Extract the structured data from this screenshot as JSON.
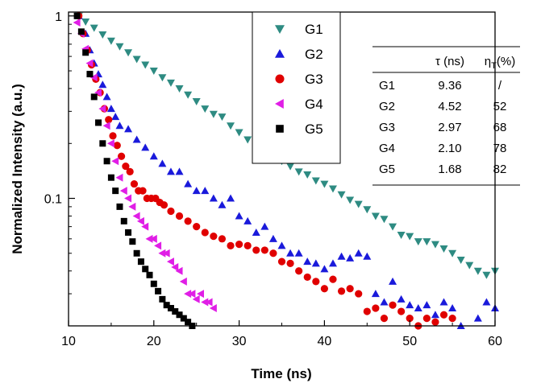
{
  "chart_data": {
    "type": "scatter",
    "xlabel": "Time (ns)",
    "ylabel": "Normalized Intensity (a.u.)",
    "xlim": [
      10,
      60
    ],
    "ylim": [
      0.02,
      1.05
    ],
    "yscale": "log",
    "xticks": [
      10,
      20,
      30,
      40,
      50,
      60
    ],
    "yticks": [
      {
        "value": 1,
        "label": "1"
      },
      {
        "value": 0.1,
        "label": "0.1"
      }
    ],
    "legend_position": "top-center",
    "series": [
      {
        "name": "G1",
        "color": "#2e8b82",
        "marker": "triangle-down",
        "x": [
          11.2,
          12,
          13,
          14,
          15,
          16,
          17,
          18,
          19,
          20,
          21,
          22,
          23,
          24,
          25,
          26,
          27,
          28,
          29,
          30,
          31,
          32,
          33,
          34,
          35,
          36,
          37,
          38,
          39,
          40,
          41,
          42,
          43,
          44,
          45,
          46,
          47,
          48,
          49,
          50,
          51,
          52,
          53,
          54,
          55,
          56,
          57,
          58,
          59,
          60
        ],
        "y": [
          1.0,
          0.93,
          0.86,
          0.79,
          0.73,
          0.68,
          0.63,
          0.58,
          0.54,
          0.5,
          0.46,
          0.43,
          0.4,
          0.37,
          0.34,
          0.31,
          0.29,
          0.28,
          0.25,
          0.23,
          0.21,
          0.2,
          0.185,
          0.17,
          0.16,
          0.15,
          0.14,
          0.135,
          0.125,
          0.12,
          0.113,
          0.105,
          0.098,
          0.093,
          0.087,
          0.08,
          0.077,
          0.07,
          0.063,
          0.062,
          0.058,
          0.058,
          0.056,
          0.053,
          0.05,
          0.046,
          0.043,
          0.04,
          0.038,
          0.04
        ]
      },
      {
        "name": "G2",
        "color": "#1a1adb",
        "marker": "triangle-up",
        "x": [
          11.2,
          12,
          12.5,
          13,
          13.5,
          14,
          14.5,
          15,
          15.5,
          16,
          17,
          18,
          19,
          20,
          21,
          22,
          23,
          24,
          25,
          26,
          27,
          28,
          29,
          30,
          31,
          32,
          33,
          34,
          35,
          36,
          37,
          38,
          39,
          40,
          41,
          42,
          43,
          44,
          45,
          46,
          47,
          48,
          49,
          50,
          51,
          52,
          53,
          54,
          55,
          56,
          58,
          59,
          60
        ],
        "y": [
          1.0,
          0.8,
          0.65,
          0.55,
          0.48,
          0.42,
          0.36,
          0.31,
          0.28,
          0.25,
          0.24,
          0.21,
          0.19,
          0.17,
          0.155,
          0.14,
          0.14,
          0.12,
          0.11,
          0.11,
          0.1,
          0.092,
          0.1,
          0.08,
          0.075,
          0.065,
          0.07,
          0.06,
          0.055,
          0.05,
          0.05,
          0.045,
          0.044,
          0.041,
          0.044,
          0.048,
          0.047,
          0.05,
          0.048,
          0.03,
          0.027,
          0.035,
          0.028,
          0.026,
          0.025,
          0.026,
          0.023,
          0.027,
          0.025,
          0.02,
          0.022,
          0.027,
          0.025
        ]
      },
      {
        "name": "G3",
        "color": "#e00000",
        "marker": "circle",
        "x": [
          11.2,
          11.7,
          12.2,
          12.7,
          13.2,
          13.7,
          14.2,
          14.7,
          15.2,
          15.7,
          16.2,
          16.7,
          17.2,
          17.7,
          18.2,
          18.7,
          19.2,
          19.7,
          20.2,
          20.7,
          21.2,
          22,
          23,
          24,
          25,
          26,
          27,
          28,
          29,
          30,
          31,
          32,
          33,
          34,
          35,
          36,
          37,
          38,
          39,
          40,
          41,
          42,
          43,
          44,
          45,
          46,
          47,
          48,
          49,
          50,
          51,
          52,
          53,
          54,
          55
        ],
        "y": [
          1.0,
          0.8,
          0.65,
          0.54,
          0.45,
          0.38,
          0.31,
          0.27,
          0.22,
          0.195,
          0.17,
          0.15,
          0.14,
          0.12,
          0.11,
          0.11,
          0.1,
          0.1,
          0.1,
          0.095,
          0.092,
          0.085,
          0.08,
          0.075,
          0.07,
          0.065,
          0.062,
          0.06,
          0.055,
          0.056,
          0.055,
          0.052,
          0.052,
          0.05,
          0.045,
          0.044,
          0.04,
          0.037,
          0.035,
          0.032,
          0.036,
          0.031,
          0.032,
          0.03,
          0.024,
          0.025,
          0.022,
          0.026,
          0.024,
          0.022,
          0.02,
          0.022,
          0.021,
          0.023,
          0.022
        ]
      },
      {
        "name": "G4",
        "color": "#e01ee6",
        "marker": "triangle-left",
        "x": [
          11,
          11.5,
          12,
          12.5,
          13,
          13.5,
          14,
          14.5,
          15,
          15.5,
          16,
          16.5,
          17,
          17.5,
          18,
          18.5,
          19,
          19.5,
          20,
          20.5,
          21,
          21.5,
          22,
          22.5,
          23,
          23.5,
          24,
          24.5,
          25,
          25.5,
          26,
          26.5,
          27
        ],
        "y": [
          0.92,
          0.8,
          0.66,
          0.55,
          0.46,
          0.38,
          0.31,
          0.25,
          0.2,
          0.16,
          0.13,
          0.11,
          0.1,
          0.09,
          0.08,
          0.075,
          0.07,
          0.06,
          0.06,
          0.055,
          0.05,
          0.05,
          0.045,
          0.042,
          0.04,
          0.035,
          0.03,
          0.03,
          0.028,
          0.03,
          0.027,
          0.027,
          0.025
        ]
      },
      {
        "name": "G5",
        "color": "#000000",
        "marker": "square",
        "x": [
          11,
          11.5,
          12,
          12.5,
          13,
          13.5,
          14,
          14.5,
          15,
          15.5,
          16,
          16.5,
          17,
          17.5,
          18,
          18.5,
          19,
          19.5,
          20,
          20.5,
          21,
          21.5,
          22,
          22.5,
          23,
          23.5,
          24,
          24.5
        ],
        "y": [
          1.0,
          0.82,
          0.63,
          0.48,
          0.36,
          0.26,
          0.2,
          0.16,
          0.13,
          0.11,
          0.09,
          0.075,
          0.065,
          0.058,
          0.05,
          0.045,
          0.041,
          0.038,
          0.034,
          0.031,
          0.028,
          0.026,
          0.025,
          0.024,
          0.023,
          0.022,
          0.021,
          0.02
        ]
      }
    ],
    "table": {
      "headers": [
        "",
        "τ (ns)",
        "η_T(%)"
      ],
      "rows": [
        [
          "G1",
          "9.36",
          "/"
        ],
        [
          "G2",
          "4.52",
          "52"
        ],
        [
          "G3",
          "2.97",
          "68"
        ],
        [
          "G4",
          "2.10",
          "78"
        ],
        [
          "G5",
          "1.68",
          "82"
        ]
      ]
    }
  }
}
